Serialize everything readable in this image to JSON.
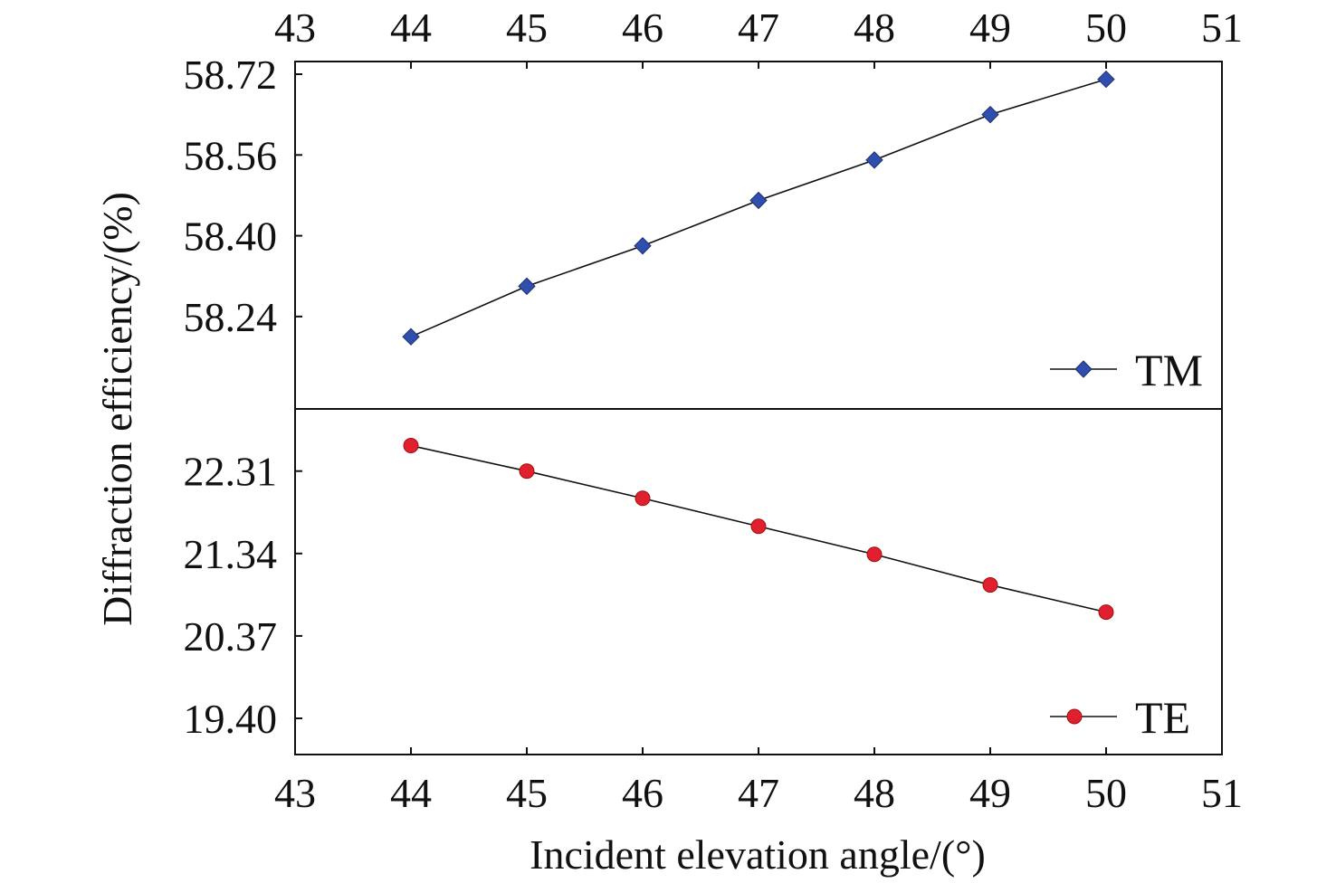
{
  "chart_data": {
    "type": "line",
    "layout": "split-panel",
    "xlabel": "Incident elevation angle/(°)",
    "ylabel": "Diffraction efficiency/(%)",
    "xlim": [
      43,
      51
    ],
    "x_ticks": [
      "43",
      "44",
      "45",
      "46",
      "47",
      "48",
      "49",
      "50",
      "51"
    ],
    "x": [
      44,
      45,
      46,
      47,
      48,
      49,
      50
    ],
    "grid": false,
    "panels": [
      {
        "position": "top",
        "ylim": [
          58.1,
          58.72
        ],
        "y_ticks": [
          "58.24",
          "58.40",
          "58.56",
          "58.72"
        ],
        "legend_position": "bottom-right",
        "series": [
          {
            "name": "TM",
            "marker": "diamond",
            "color": "#2f4fae",
            "values": [
              58.2,
              58.3,
              58.38,
              58.47,
              58.55,
              58.64,
              58.71
            ]
          }
        ]
      },
      {
        "position": "bottom",
        "ylim": [
          19.4,
          22.85
        ],
        "y_ticks": [
          "19.40",
          "20.37",
          "21.34",
          "22.31"
        ],
        "legend_position": "bottom-right",
        "series": [
          {
            "name": "TE",
            "marker": "circle",
            "color": "#e0202e",
            "values": [
              22.61,
              22.31,
              21.99,
              21.66,
              21.33,
              20.97,
              20.65
            ]
          }
        ]
      }
    ]
  }
}
